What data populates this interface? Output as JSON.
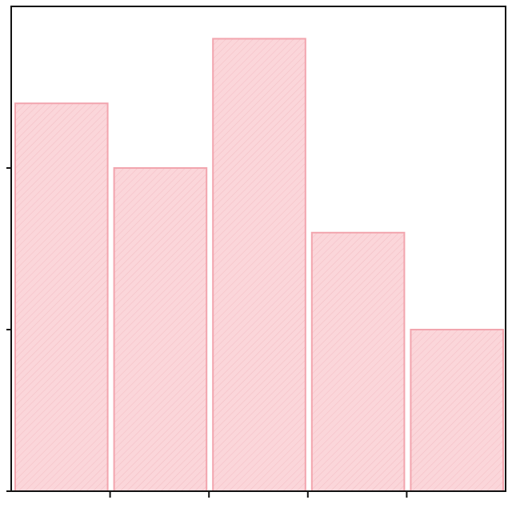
{
  "chart_data": {
    "type": "bar",
    "bins": [
      {
        "start": 0,
        "end": 1,
        "value": 2.4
      },
      {
        "start": 1,
        "end": 2,
        "value": 2.0
      },
      {
        "start": 2,
        "end": 3,
        "value": 2.8
      },
      {
        "start": 3,
        "end": 4,
        "value": 1.6
      },
      {
        "start": 4,
        "end": 5,
        "value": 1.0
      }
    ],
    "xlim": [
      0,
      5
    ],
    "ylim": [
      0,
      3
    ],
    "y_ticks": [
      0,
      1,
      2
    ],
    "x_ticks": [
      1,
      2,
      3,
      4
    ],
    "title": "",
    "xlabel": "",
    "ylabel": "",
    "grid": false,
    "colors": {
      "fill": "#fbd6da",
      "stroke": "#f2a5ae",
      "hatch": "#f3bcc3",
      "axis": "#111111"
    }
  }
}
